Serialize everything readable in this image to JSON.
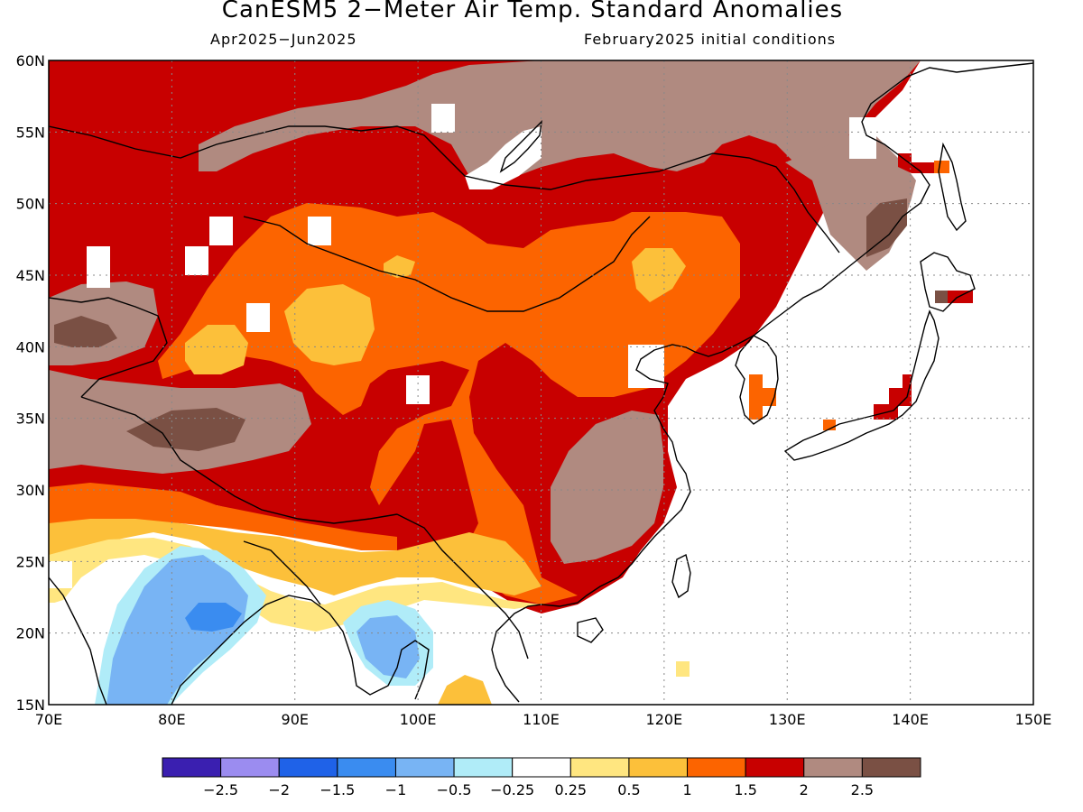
{
  "title": "CanESM5 2−Meter Air Temp. Standard Anomalies",
  "subtitle_left": "Apr2025−Jun2025",
  "subtitle_right": "February2025 initial conditions",
  "map": {
    "lon_range": [
      70,
      150
    ],
    "lat_range": [
      15,
      60
    ],
    "lon_ticks": [
      "70E",
      "80E",
      "90E",
      "100E",
      "110E",
      "120E",
      "130E",
      "140E",
      "150E"
    ],
    "lat_ticks": [
      "15N",
      "20N",
      "25N",
      "30N",
      "35N",
      "40N",
      "45N",
      "50N",
      "55N",
      "60N"
    ],
    "gridlines": "dotted"
  },
  "legend": {
    "orientation": "horizontal",
    "labels": [
      "−2.5",
      "−2",
      "−1.5",
      "−1",
      "−0.5",
      "−0.25",
      "0.25",
      "0.5",
      "1",
      "1.5",
      "2",
      "2.5"
    ],
    "colors": [
      "#3a1fb0",
      "#9b8cf0",
      "#1f62e8",
      "#3a8cf0",
      "#78b4f4",
      "#b0ecf8",
      "#ffffff",
      "#ffe680",
      "#fcc03a",
      "#fc6400",
      "#c80000",
      "#b08a80",
      "#7a5044"
    ]
  },
  "colors": {
    "band_neg2": "#1f62e8",
    "band_neg15": "#3a8cf0",
    "band_neg1": "#78b4f4",
    "band_neg05": "#b0ecf8",
    "band_neutral": "#ffffff",
    "band_025": "#ffe680",
    "band_05": "#fcc03a",
    "band_1": "#fc6400",
    "band_15": "#c80000",
    "band_2": "#b08a80",
    "band_25": "#7a5044"
  }
}
